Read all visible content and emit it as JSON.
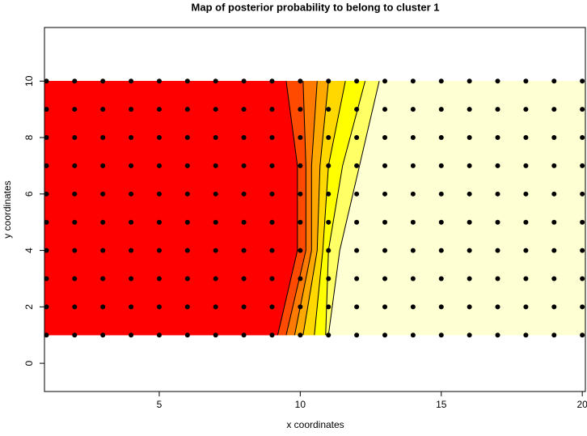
{
  "chart_data": {
    "type": "contour",
    "title": "Map of posterior probability to belong to cluster  1",
    "x_label": "x coordinates",
    "y_label": "y coordinates",
    "xlim": [
      0.93,
      20.11
    ],
    "ylim": [
      -1,
      11.9
    ],
    "xticks": [
      5,
      10,
      15,
      20
    ],
    "yticks": [
      0,
      2,
      4,
      6,
      8,
      10
    ],
    "grid_x": [
      1,
      2,
      3,
      4,
      5,
      6,
      7,
      8,
      9,
      10,
      11,
      12,
      13,
      14,
      15,
      16,
      17,
      18,
      19,
      20
    ],
    "grid_y": [
      1,
      2,
      3,
      4,
      5,
      6,
      7,
      8,
      9,
      10
    ],
    "contour_y": [
      1,
      4,
      7,
      10
    ],
    "contours": [
      {
        "x": [
          9.2,
          9.9,
          9.9,
          9.5
        ]
      },
      {
        "x": [
          9.5,
          10.2,
          10.2,
          10.1
        ]
      },
      {
        "x": [
          9.8,
          10.4,
          10.4,
          10.6
        ]
      },
      {
        "x": [
          10.1,
          10.6,
          10.7,
          11.0
        ]
      },
      {
        "x": [
          10.5,
          10.8,
          11.0,
          11.6
        ]
      },
      {
        "x": [
          10.9,
          11.0,
          11.5,
          12.3
        ]
      },
      {
        "x": [
          11.0,
          11.4,
          12.1,
          12.8
        ]
      }
    ],
    "band_colors": [
      "#ff0000",
      "#ff4a00",
      "#ff7a00",
      "#ffa800",
      "#ffd800",
      "#ffff00",
      "#ffff66",
      "#ffffd4"
    ],
    "point_color": "#000000"
  }
}
